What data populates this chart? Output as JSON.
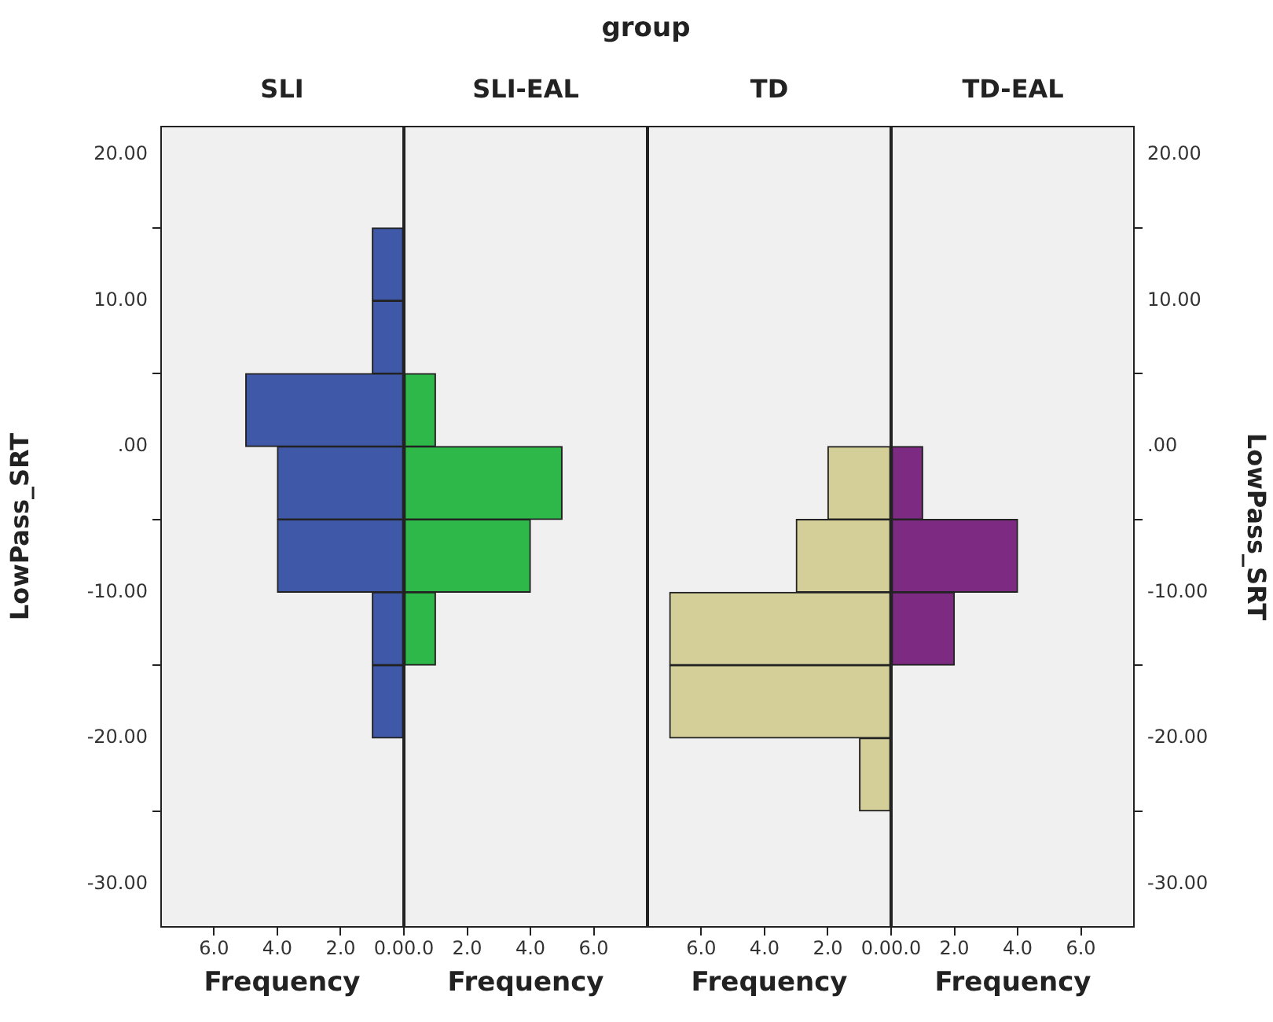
{
  "chart_data": [
    {
      "type": "histogram",
      "orientation": "horizontal",
      "title": "SLI",
      "annotations": [
        "group"
      ],
      "xlabel": "Frequency",
      "ylabel": "LowPass_SRT",
      "bins": [
        -25,
        -20,
        -15,
        -10,
        -5,
        0,
        5,
        10,
        15
      ],
      "values": [
        0,
        1,
        1,
        4,
        4,
        5,
        1,
        1
      ],
      "color": "#3f58a8",
      "xlim": [
        7.7,
        0
      ],
      "xticks": [
        {
          "value": 6,
          "label": "6.0"
        },
        {
          "value": 4,
          "label": "4.0"
        },
        {
          "value": 2,
          "label": "2.0"
        },
        {
          "value": 0,
          "label": "0.0"
        }
      ],
      "ylim": [
        -33,
        22
      ],
      "yticks": [
        {
          "value": -30,
          "label": "-30.00"
        },
        {
          "value": -20,
          "label": "-20.00"
        },
        {
          "value": -10,
          "label": "-10.00"
        },
        {
          "value": 0,
          "label": ".00"
        },
        {
          "value": 10,
          "label": "10.00"
        },
        {
          "value": 20,
          "label": "20.00"
        }
      ]
    },
    {
      "type": "histogram",
      "orientation": "horizontal",
      "title": "SLI-EAL",
      "xlabel": "Frequency",
      "tick_labels": "x",
      "bins": [
        -25,
        -20,
        -15,
        -10,
        -5,
        0,
        5,
        10,
        15
      ],
      "values": [
        0,
        0,
        1,
        4,
        5,
        1,
        0,
        0
      ],
      "color": "#2eb84a",
      "xlim": [
        0,
        7.7
      ],
      "xticks": [
        {
          "value": 0,
          "label": "0.0"
        },
        {
          "value": 2,
          "label": "2.0"
        },
        {
          "value": 4,
          "label": "4.0"
        },
        {
          "value": 6,
          "label": "6.0"
        }
      ],
      "ylim": [
        -33,
        22
      ]
    },
    {
      "type": "histogram",
      "orientation": "horizontal",
      "title": "TD",
      "xlabel": "Frequency",
      "tick_labels": "x",
      "bins": [
        -25,
        -20,
        -15,
        -10,
        -5,
        0,
        5,
        10,
        15
      ],
      "values": [
        1,
        7,
        7,
        3,
        2,
        0,
        0,
        0
      ],
      "color": "#d4cf98",
      "xlim": [
        7.7,
        0
      ],
      "xticks": [
        {
          "value": 6,
          "label": "6.0"
        },
        {
          "value": 4,
          "label": "4.0"
        },
        {
          "value": 2,
          "label": "2.0"
        },
        {
          "value": 0,
          "label": "0.0"
        }
      ],
      "ylim": [
        -33,
        22
      ]
    },
    {
      "type": "histogram",
      "orientation": "horizontal",
      "title": "TD-EAL",
      "xlabel": "Frequency",
      "ylabel": "LowPass_SRT",
      "bins": [
        -25,
        -20,
        -15,
        -10,
        -5,
        0,
        5,
        10,
        15
      ],
      "values": [
        0,
        0,
        2,
        4,
        1,
        0,
        0,
        0
      ],
      "color": "#7d2a82",
      "xlim": [
        0,
        7.7
      ],
      "xticks": [
        {
          "value": 0,
          "label": "0.0"
        },
        {
          "value": 2,
          "label": "2.0"
        },
        {
          "value": 4,
          "label": "4.0"
        },
        {
          "value": 6,
          "label": "6.0"
        }
      ],
      "ylim": [
        -33,
        22
      ],
      "yticks": [
        {
          "value": -30,
          "label": "-30.00"
        },
        {
          "value": -20,
          "label": "-20.00"
        },
        {
          "value": -10,
          "label": "-10.00"
        },
        {
          "value": 0,
          "label": ".00"
        },
        {
          "value": 10,
          "label": "10.00"
        },
        {
          "value": 20,
          "label": "20.00"
        }
      ]
    }
  ]
}
